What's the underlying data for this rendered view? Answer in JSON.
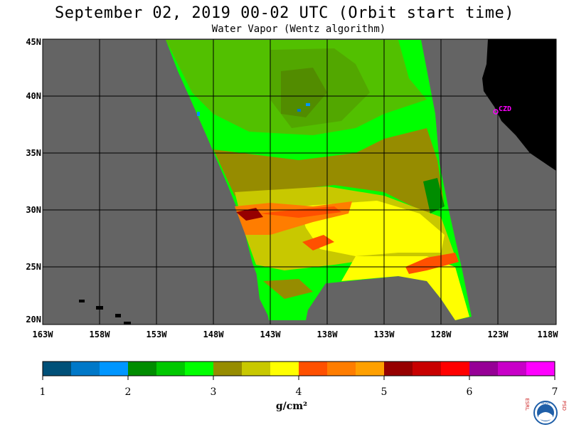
{
  "title": "September 02, 2019  00-02 UTC  (Orbit start time)",
  "subtitle": "Water Vapor (Wentz algorithm)",
  "map": {
    "lat_labels": [
      "45N",
      "40N",
      "35N",
      "30N",
      "25N",
      "20N"
    ],
    "lon_labels": [
      "163W",
      "158W",
      "153W",
      "148W",
      "143W",
      "138W",
      "133W",
      "128W",
      "123W",
      "118W"
    ],
    "station_label": "CZD",
    "colors": {
      "no_data": "#646464",
      "land": "#000000",
      "grid": "#000000",
      "station": "#ff00ff"
    }
  },
  "colorbar": {
    "ticks": [
      "1",
      "2",
      "3",
      "4",
      "5",
      "6",
      "7"
    ],
    "units": "g/cm²",
    "colors": [
      "#005078",
      "#0078c8",
      "#0096ff",
      "#008c00",
      "#00c800",
      "#00ff00",
      "#968c00",
      "#c8c800",
      "#ffff00",
      "#ff5000",
      "#ff7d00",
      "#ffa000",
      "#960000",
      "#c80000",
      "#ff0000",
      "#960096",
      "#c800c8",
      "#ff00ff"
    ]
  },
  "logo": {
    "left_letters": "ESRL",
    "right_letters": "PSD",
    "center_text": "NOAA"
  }
}
